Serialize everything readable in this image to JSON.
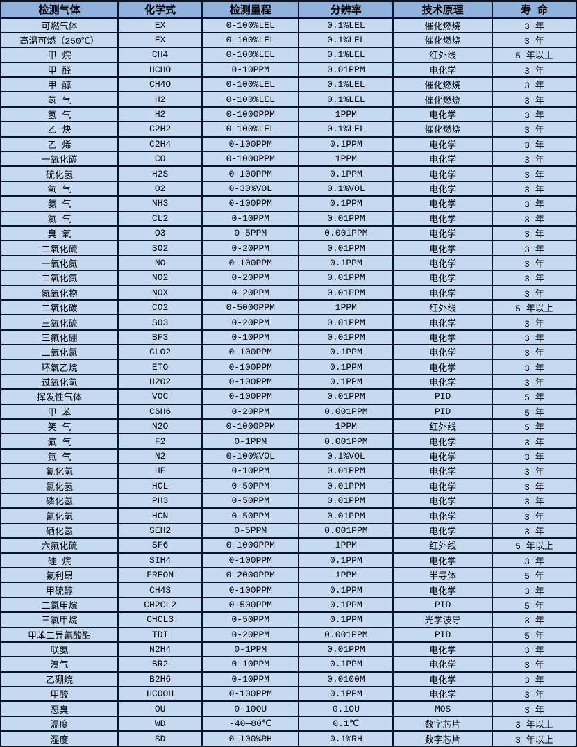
{
  "colors": {
    "border": "#0a1426",
    "header_bg": "#8fb3dc",
    "row_bg": "#c5d9f1",
    "text": "#000000"
  },
  "table": {
    "headers": [
      "检测气体",
      "化学式",
      "检测量程",
      "分辨率",
      "技术原理",
      "寿 命"
    ],
    "rows": [
      [
        "可燃气体",
        "EX",
        "0-100%LEL",
        "0.1%LEL",
        "催化燃烧",
        "3 年"
      ],
      [
        "高温可燃（250℃）",
        "EX",
        "0-100%LEL",
        "0.1%LEL",
        "催化燃烧",
        "3 年"
      ],
      [
        "甲 烷",
        "CH4",
        "0-100%LEL",
        "0.1%LEL",
        "红外线",
        "5 年以上"
      ],
      [
        "甲 醛",
        "HCHO",
        "0-10PPM",
        "0.01PPM",
        "电化学",
        "3 年"
      ],
      [
        "甲 醇",
        "CH4O",
        "0-100%LEL",
        "0.1%LEL",
        "催化燃烧",
        "3 年"
      ],
      [
        "氢 气",
        "H2",
        "0-100%LEL",
        "0.1%LEL",
        "催化燃烧",
        "3 年"
      ],
      [
        "氢 气",
        "H2",
        "0-1000PPM",
        "1PPM",
        "电化学",
        "3 年"
      ],
      [
        "乙 炔",
        "C2H2",
        "0-100%LEL",
        "0.1%LEL",
        "催化燃烧",
        "3 年"
      ],
      [
        "乙 烯",
        "C2H4",
        "0-100PPM",
        "0.1PPM",
        "电化学",
        "3 年"
      ],
      [
        "一氧化碳",
        "CO",
        "0-1000PPM",
        "1PPM",
        "电化学",
        "3 年"
      ],
      [
        "硫化氢",
        "H2S",
        "0-100PPM",
        "0.1PPM",
        "电化学",
        "3 年"
      ],
      [
        "氧 气",
        "O2",
        "0-30%VOL",
        "0.1%VOL",
        "电化学",
        "3 年"
      ],
      [
        "氨 气",
        "NH3",
        "0-100PPM",
        "0.1PPM",
        "电化学",
        "3 年"
      ],
      [
        "氯 气",
        "CL2",
        "0-10PPM",
        "0.01PPM",
        "电化学",
        "3 年"
      ],
      [
        "臭 氧",
        "O3",
        "0-5PPM",
        "0.001PPM",
        "电化学",
        "3 年"
      ],
      [
        "二氧化硫",
        "SO2",
        "0-20PPM",
        "0.01PPM",
        "电化学",
        "3 年"
      ],
      [
        "一氧化氮",
        "NO",
        "0-100PPM",
        "0.1PPM",
        "电化学",
        "3 年"
      ],
      [
        "二氧化氮",
        "NO2",
        "0-20PPM",
        "0.01PPM",
        "电化学",
        "3 年"
      ],
      [
        "氮氧化物",
        "NOX",
        "0-20PPM",
        "0.01PPM",
        "电化学",
        "3 年"
      ],
      [
        "二氧化碳",
        "CO2",
        "0-5000PPM",
        "1PPM",
        "红外线",
        "5 年以上"
      ],
      [
        "三氧化硫",
        "SO3",
        "0-20PPM",
        "0.01PPM",
        "电化学",
        "3 年"
      ],
      [
        "三氟化硼",
        "BF3",
        "0-10PPM",
        "0.01PPM",
        "电化学",
        "3 年"
      ],
      [
        "二氧化氯",
        "CLO2",
        "0-100PPM",
        "0.1PPM",
        "电化学",
        "3 年"
      ],
      [
        "环氧乙烷",
        "ETO",
        "0-100PPM",
        "0.1PPM",
        "电化学",
        "3 年"
      ],
      [
        "过氧化氢",
        "H2O2",
        "0-100PPM",
        "0.1PPM",
        "电化学",
        "3 年"
      ],
      [
        "挥发性气体",
        "VOC",
        "0-100PPM",
        "0.01PPM",
        "PID",
        "5 年"
      ],
      [
        "甲 苯",
        "C6H6",
        "0-20PPM",
        "0.001PPM",
        "PID",
        "5 年"
      ],
      [
        "笑 气",
        "N2O",
        "0-1000PPM",
        "1PPM",
        "红外线",
        "5 年"
      ],
      [
        "氟 气",
        "F2",
        "0-1PPM",
        "0.001PPM",
        "电化学",
        "3 年"
      ],
      [
        "氮 气",
        "N2",
        "0-100%VOL",
        "0.1%VOL",
        "电化学",
        "3 年"
      ],
      [
        "氟化氢",
        "HF",
        "0-10PPM",
        "0.01PPM",
        "电化学",
        "3 年"
      ],
      [
        "氯化氢",
        "HCL",
        "0-50PPM",
        "0.01PPM",
        "电化学",
        "3 年"
      ],
      [
        "磷化氢",
        "PH3",
        "0-50PPM",
        "0.01PPM",
        "电化学",
        "3 年"
      ],
      [
        "氰化氢",
        "HCN",
        "0-50PPM",
        "0.01PPM",
        "电化学",
        "3 年"
      ],
      [
        "硒化氢",
        "SEH2",
        "0-5PPM",
        "0.001PPM",
        "电化学",
        "3 年"
      ],
      [
        "六氟化硫",
        "SF6",
        "0-1000PPM",
        "1PPM",
        "红外线",
        "5 年以上"
      ],
      [
        "硅 烷",
        "SIH4",
        "0-100PPM",
        "0.1PPM",
        "电化学",
        "3 年"
      ],
      [
        "氟利昂",
        "FREON",
        "0-2000PPM",
        "1PPM",
        "半导体",
        "5 年"
      ],
      [
        "甲硫醇",
        "CH4S",
        "0-100PPM",
        "0.1PPM",
        "电化学",
        "3 年"
      ],
      [
        "二氯甲烷",
        "CH2CL2",
        "0-500PPM",
        "0.1PPM",
        "PID",
        "5 年"
      ],
      [
        "三氯甲烷",
        "CHCL3",
        "0-50PPM",
        "0.1PPM",
        "光学波导",
        "3 年"
      ],
      [
        "甲苯二异氰酸酯",
        "TDI",
        "0-20PPM",
        "0.001PPM",
        "PID",
        "5 年"
      ],
      [
        "联氨",
        "N2H4",
        "0-1PPM",
        "0.01PPM",
        "电化学",
        "3 年"
      ],
      [
        "溴气",
        "BR2",
        "0-10PPM",
        "0.1PPM",
        "电化学",
        "3 年"
      ],
      [
        "乙硼烷",
        "B2H6",
        "0-10PPM",
        "0.0100M",
        "电化学",
        "3 年"
      ],
      [
        "甲酸",
        "HCOOH",
        "0-100PPM",
        "0.1PPM",
        "电化学",
        "3 年"
      ],
      [
        "恶臭",
        "OU",
        "0-10OU",
        "0.1OU",
        "MOS",
        "3 年"
      ],
      [
        "温度",
        "WD",
        "-40—80℃",
        "0.1℃",
        "数字芯片",
        "3 年以上"
      ],
      [
        "湿度",
        "SD",
        "0-100%RH",
        "0.1%RH",
        "数字芯片",
        "3 年以上"
      ]
    ]
  }
}
